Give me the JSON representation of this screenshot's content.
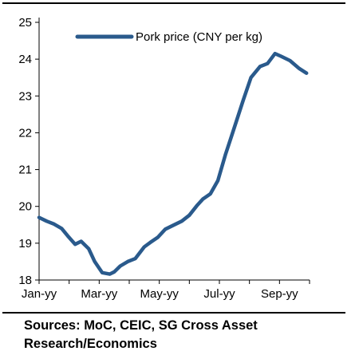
{
  "chart_data": {
    "type": "line",
    "title": "",
    "xlabel": "",
    "ylabel": "",
    "x_tick_labels": [
      "Jan-yy",
      "Mar-yy",
      "May-yy",
      "Jul-yy",
      "Sep-yy"
    ],
    "x_tick_positions": [
      0,
      2,
      4,
      6,
      8
    ],
    "xlim": [
      0,
      9
    ],
    "ylim": [
      18,
      25
    ],
    "y_ticks": [
      18,
      19,
      20,
      21,
      22,
      23,
      24,
      25
    ],
    "grid": false,
    "legend_position": "top",
    "series": [
      {
        "name": "Pork price (CNY per kg)",
        "color": "#2a5a8c",
        "x": [
          0,
          0.25,
          0.5,
          0.75,
          0.95,
          1.2,
          1.4,
          1.65,
          1.85,
          2.1,
          2.35,
          2.5,
          2.7,
          2.95,
          3.2,
          3.5,
          3.7,
          3.95,
          4.2,
          4.45,
          4.75,
          5.0,
          5.25,
          5.45,
          5.7,
          5.95,
          6.2,
          6.4,
          6.6,
          6.8,
          7.05,
          7.35,
          7.6,
          7.85,
          8.05,
          8.35,
          8.65,
          8.9
        ],
        "values": [
          19.7,
          19.6,
          19.52,
          19.4,
          19.2,
          18.97,
          19.05,
          18.85,
          18.5,
          18.2,
          18.16,
          18.22,
          18.38,
          18.5,
          18.58,
          18.9,
          19.02,
          19.16,
          19.38,
          19.48,
          19.6,
          19.76,
          20.02,
          20.2,
          20.34,
          20.7,
          21.4,
          21.9,
          22.4,
          22.9,
          23.5,
          23.8,
          23.88,
          24.15,
          24.08,
          23.96,
          23.75,
          23.62
        ]
      }
    ]
  },
  "legend": {
    "label": "Pork price (CNY per kg)"
  },
  "source_text": "Sources: MoC, CEIC, SG Cross Asset Research/Economics"
}
